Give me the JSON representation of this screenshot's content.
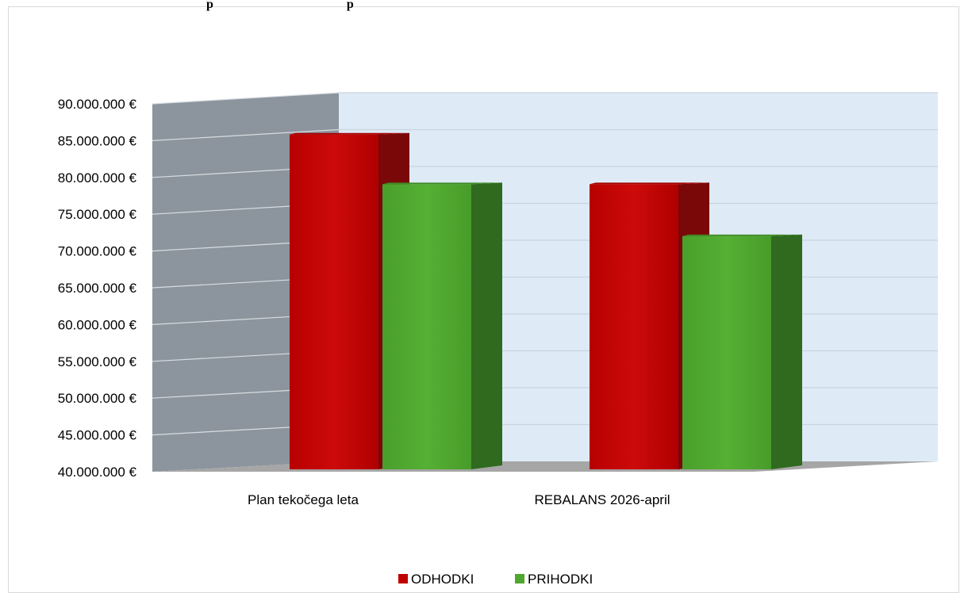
{
  "chart_data": {
    "type": "bar",
    "title_fragment": "p                                          p",
    "categories": [
      "Plan tekočega leta",
      "REBALANS 2026-april"
    ],
    "series": [
      {
        "name": "ODHODKI",
        "color": "#c00000",
        "values": [
          85800000,
          79000000
        ]
      },
      {
        "name": "PRIHODKI",
        "color": "#4ea72e",
        "values": [
          79000000,
          71900000
        ]
      }
    ],
    "ylim": [
      40000000,
      90000000
    ],
    "ytick_step": 5000000,
    "ytick_labels": [
      "40.000.000 €",
      "45.000.000 €",
      "50.000.000 €",
      "55.000.000 €",
      "60.000.000 €",
      "65.000.000 €",
      "70.000.000 €",
      "75.000.000 €",
      "80.000.000 €",
      "85.000.000 €",
      "90.000.000 €"
    ],
    "grid": true,
    "legend_position": "bottom",
    "style": "3d-clustered-column",
    "back_wall_color": "#deebf7",
    "side_wall_color": "#8c959d",
    "floor_color": "#a6a6a6"
  }
}
